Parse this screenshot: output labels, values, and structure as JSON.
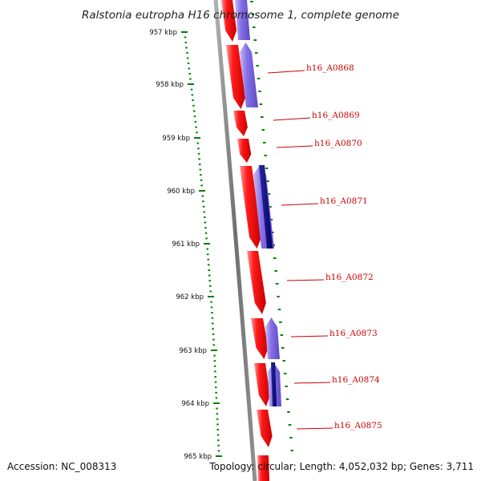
{
  "title": "Ralstonia eutropha H16 chromosome 1, complete genome",
  "footer": {
    "accession": "Accession: NC_008313",
    "summary": "Topology: circular; Length: 4,052,032 bp; Genes: 3,711"
  },
  "ticks": [
    {
      "label": "957 kbp"
    },
    {
      "label": "958 kbp"
    },
    {
      "label": "959 kbp"
    },
    {
      "label": "960 kbp"
    },
    {
      "label": "961 kbp"
    },
    {
      "label": "962 kbp"
    },
    {
      "label": "963 kbp"
    },
    {
      "label": "964 kbp"
    },
    {
      "label": "965 kbp"
    }
  ],
  "gene_labels": [
    {
      "label": "h16_A0868"
    },
    {
      "label": "h16_A0869"
    },
    {
      "label": "h16_A0870"
    },
    {
      "label": "h16_A0871"
    },
    {
      "label": "h16_A0872"
    },
    {
      "label": "h16_A0873"
    },
    {
      "label": "h16_A0874"
    },
    {
      "label": "h16_A0875"
    }
  ],
  "colors": {
    "forward_gene": "#ff0000",
    "reverse_gene": "#7b68ee",
    "reverse_gene_dark": "#000080",
    "backbone": "#808080",
    "ticks": "#008000",
    "gene_label": "#cc0000"
  }
}
